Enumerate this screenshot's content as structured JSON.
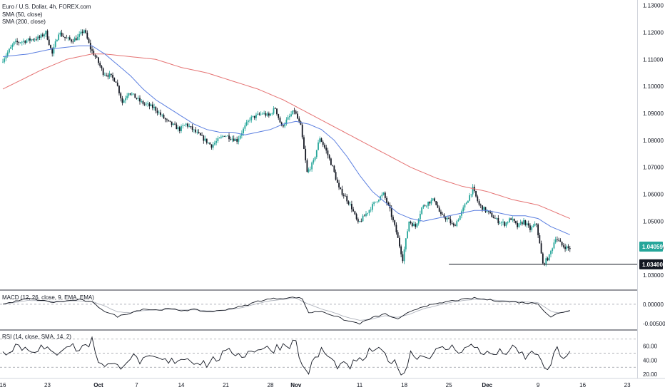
{
  "chart_data": [
    {
      "type": "candlestick",
      "title": "Euro / U.S. Dollar, 4h, FOREX.com",
      "indicators": [
        "SMA (50, close)",
        "SMA (200, close)"
      ],
      "ylim": [
        1.025,
        1.132
      ],
      "y_ticks": [
        "1.13000",
        "1.12000",
        "1.11000",
        "1.10000",
        "1.09000",
        "1.08000",
        "1.07000",
        "1.06000",
        "1.05000",
        "1.04000",
        "1.03000"
      ],
      "y_tick_values": [
        1.13,
        1.12,
        1.11,
        1.1,
        1.09,
        1.08,
        1.07,
        1.06,
        1.05,
        1.04,
        1.03
      ],
      "x_ticks": [
        "16",
        "23",
        "Oct",
        "7",
        "14",
        "21",
        "28",
        "Nov",
        "11",
        "18",
        "25",
        "Dec",
        "9",
        "16",
        "23"
      ],
      "x_tick_days": [
        0,
        7,
        15,
        21,
        28,
        35,
        42,
        46,
        56,
        63,
        70,
        76,
        84,
        91,
        98
      ],
      "x_range_days": [
        0,
        100
      ],
      "price_key_points": [
        [
          0,
          1.109
        ],
        [
          2,
          1.116
        ],
        [
          4,
          1.117
        ],
        [
          6,
          1.118
        ],
        [
          7,
          1.12
        ],
        [
          8,
          1.112
        ],
        [
          9,
          1.12
        ],
        [
          10,
          1.118
        ],
        [
          11,
          1.117
        ],
        [
          12,
          1.118
        ],
        [
          13,
          1.121
        ],
        [
          14,
          1.114
        ],
        [
          15,
          1.11
        ],
        [
          16,
          1.105
        ],
        [
          17,
          1.104
        ],
        [
          18,
          1.102
        ],
        [
          19,
          1.094
        ],
        [
          20,
          1.098
        ],
        [
          22,
          1.094
        ],
        [
          24,
          1.092
        ],
        [
          26,
          1.087
        ],
        [
          28,
          1.084
        ],
        [
          29,
          1.086
        ],
        [
          31,
          1.082
        ],
        [
          33,
          1.078
        ],
        [
          35,
          1.082
        ],
        [
          37,
          1.08
        ],
        [
          39,
          1.088
        ],
        [
          41,
          1.09
        ],
        [
          42,
          1.089
        ],
        [
          43,
          1.092
        ],
        [
          44,
          1.085
        ],
        [
          45,
          1.088
        ],
        [
          46,
          1.091
        ],
        [
          47,
          1.085
        ],
        [
          48,
          1.068
        ],
        [
          49,
          1.072
        ],
        [
          50,
          1.081
        ],
        [
          51,
          1.076
        ],
        [
          52,
          1.07
        ],
        [
          53,
          1.062
        ],
        [
          54,
          1.059
        ],
        [
          55,
          1.055
        ],
        [
          56,
          1.049
        ],
        [
          57,
          1.052
        ],
        [
          58,
          1.055
        ],
        [
          59,
          1.058
        ],
        [
          60,
          1.06
        ],
        [
          61,
          1.054
        ],
        [
          62,
          1.046
        ],
        [
          63,
          1.036
        ],
        [
          64,
          1.05
        ],
        [
          65,
          1.048
        ],
        [
          66,
          1.055
        ],
        [
          67,
          1.057
        ],
        [
          68,
          1.058
        ],
        [
          69,
          1.052
        ],
        [
          70,
          1.051
        ],
        [
          71,
          1.048
        ],
        [
          72,
          1.052
        ],
        [
          73,
          1.057
        ],
        [
          74,
          1.062
        ],
        [
          75,
          1.056
        ],
        [
          76,
          1.054
        ],
        [
          77,
          1.052
        ],
        [
          78,
          1.05
        ],
        [
          79,
          1.049
        ],
        [
          80,
          1.051
        ],
        [
          81,
          1.048
        ],
        [
          82,
          1.05
        ],
        [
          83,
          1.047
        ],
        [
          84,
          1.049
        ],
        [
          85,
          1.034
        ],
        [
          86,
          1.037
        ],
        [
          87,
          1.044
        ],
        [
          88,
          1.041
        ],
        [
          89,
          1.04
        ]
      ],
      "sma50_key_points": [
        [
          0,
          1.111
        ],
        [
          4,
          1.112
        ],
        [
          8,
          1.114
        ],
        [
          12,
          1.115
        ],
        [
          14,
          1.115
        ],
        [
          16,
          1.112
        ],
        [
          18,
          1.108
        ],
        [
          20,
          1.104
        ],
        [
          22,
          1.099
        ],
        [
          24,
          1.095
        ],
        [
          26,
          1.092
        ],
        [
          28,
          1.089
        ],
        [
          30,
          1.086
        ],
        [
          32,
          1.084
        ],
        [
          34,
          1.083
        ],
        [
          36,
          1.083
        ],
        [
          38,
          1.082
        ],
        [
          40,
          1.083
        ],
        [
          42,
          1.084
        ],
        [
          44,
          1.086
        ],
        [
          46,
          1.087
        ],
        [
          48,
          1.086
        ],
        [
          50,
          1.084
        ],
        [
          52,
          1.08
        ],
        [
          54,
          1.074
        ],
        [
          56,
          1.067
        ],
        [
          58,
          1.061
        ],
        [
          60,
          1.057
        ],
        [
          62,
          1.053
        ],
        [
          64,
          1.051
        ],
        [
          66,
          1.05
        ],
        [
          68,
          1.051
        ],
        [
          70,
          1.052
        ],
        [
          72,
          1.053
        ],
        [
          74,
          1.054
        ],
        [
          76,
          1.054
        ],
        [
          78,
          1.053
        ],
        [
          80,
          1.052
        ],
        [
          82,
          1.052
        ],
        [
          84,
          1.051
        ],
        [
          86,
          1.048
        ],
        [
          88,
          1.046
        ],
        [
          89,
          1.045
        ]
      ],
      "sma200_key_points": [
        [
          0,
          1.099
        ],
        [
          6,
          1.106
        ],
        [
          10,
          1.11
        ],
        [
          14,
          1.112
        ],
        [
          16,
          1.112
        ],
        [
          20,
          1.111
        ],
        [
          24,
          1.11
        ],
        [
          28,
          1.107
        ],
        [
          32,
          1.105
        ],
        [
          36,
          1.102
        ],
        [
          40,
          1.099
        ],
        [
          44,
          1.095
        ],
        [
          48,
          1.09
        ],
        [
          52,
          1.085
        ],
        [
          56,
          1.08
        ],
        [
          60,
          1.075
        ],
        [
          64,
          1.07
        ],
        [
          68,
          1.066
        ],
        [
          72,
          1.063
        ],
        [
          76,
          1.061
        ],
        [
          80,
          1.058
        ],
        [
          84,
          1.056
        ],
        [
          89,
          1.051
        ]
      ],
      "support_line": {
        "value": 1.034,
        "from_day": 70,
        "label": "1.03400"
      },
      "last_price": {
        "value": 1.04059,
        "label": "1.04059"
      },
      "colors": {
        "up": "#26a69a",
        "down": "#131722",
        "sma50": "#5b7fe0",
        "sma200": "#e57373",
        "last_price_bg": "#26a69a",
        "support_bg": "#131722"
      }
    },
    {
      "type": "line",
      "title": "MACD (12, 26, close, 9, EMA, EMA)",
      "y_ticks": [
        "0.00000",
        "-0.00500"
      ],
      "y_tick_values": [
        0.0,
        -0.005
      ],
      "ylim": [
        -0.0065,
        0.0035
      ],
      "macd_key_points": [
        [
          0,
          0.0
        ],
        [
          4,
          0.0015
        ],
        [
          8,
          0.0005
        ],
        [
          12,
          0.0012
        ],
        [
          14,
          0.0005
        ],
        [
          16,
          -0.0018
        ],
        [
          18,
          -0.0032
        ],
        [
          20,
          -0.0022
        ],
        [
          22,
          -0.0012
        ],
        [
          24,
          -0.0015
        ],
        [
          26,
          -0.0012
        ],
        [
          28,
          -0.0016
        ],
        [
          30,
          -0.0014
        ],
        [
          32,
          -0.002
        ],
        [
          34,
          -0.0017
        ],
        [
          36,
          -0.001
        ],
        [
          38,
          -0.0004
        ],
        [
          40,
          0.0008
        ],
        [
          42,
          0.0014
        ],
        [
          44,
          0.0016
        ],
        [
          46,
          0.0018
        ],
        [
          47,
          0.0014
        ],
        [
          48,
          -0.0022
        ],
        [
          50,
          -0.0018
        ],
        [
          52,
          -0.003
        ],
        [
          54,
          -0.0043
        ],
        [
          56,
          -0.005
        ],
        [
          58,
          -0.0035
        ],
        [
          60,
          -0.0025
        ],
        [
          62,
          -0.004
        ],
        [
          64,
          -0.0018
        ],
        [
          66,
          -0.0005
        ],
        [
          68,
          0.0
        ],
        [
          70,
          0.0008
        ],
        [
          72,
          0.0012
        ],
        [
          74,
          0.0016
        ],
        [
          76,
          0.0012
        ],
        [
          78,
          0.0008
        ],
        [
          80,
          0.0006
        ],
        [
          82,
          0.0004
        ],
        [
          84,
          0.0002
        ],
        [
          85,
          -0.0018
        ],
        [
          86,
          -0.0033
        ],
        [
          87,
          -0.0025
        ],
        [
          89,
          -0.0015
        ]
      ],
      "signal_key_points": [
        [
          0,
          0.0
        ],
        [
          4,
          0.001
        ],
        [
          8,
          0.0008
        ],
        [
          12,
          0.0009
        ],
        [
          14,
          0.0007
        ],
        [
          16,
          -0.0005
        ],
        [
          18,
          -0.002
        ],
        [
          20,
          -0.0022
        ],
        [
          22,
          -0.0016
        ],
        [
          24,
          -0.0015
        ],
        [
          26,
          -0.0013
        ],
        [
          28,
          -0.0015
        ],
        [
          30,
          -0.0014
        ],
        [
          32,
          -0.0017
        ],
        [
          34,
          -0.0017
        ],
        [
          36,
          -0.0013
        ],
        [
          38,
          -0.0007
        ],
        [
          40,
          0.0002
        ],
        [
          42,
          0.0009
        ],
        [
          44,
          0.0013
        ],
        [
          46,
          0.0016
        ],
        [
          48,
          0.0
        ],
        [
          50,
          -0.0012
        ],
        [
          52,
          -0.0022
        ],
        [
          54,
          -0.0034
        ],
        [
          56,
          -0.0042
        ],
        [
          58,
          -0.0038
        ],
        [
          60,
          -0.003
        ],
        [
          62,
          -0.0034
        ],
        [
          64,
          -0.0025
        ],
        [
          66,
          -0.0012
        ],
        [
          68,
          -0.0004
        ],
        [
          70,
          0.0004
        ],
        [
          72,
          0.0009
        ],
        [
          74,
          0.0013
        ],
        [
          76,
          0.0012
        ],
        [
          78,
          0.001
        ],
        [
          80,
          0.0008
        ],
        [
          82,
          0.0006
        ],
        [
          84,
          0.0004
        ],
        [
          86,
          -0.0018
        ],
        [
          87,
          -0.0022
        ],
        [
          89,
          -0.0019
        ]
      ],
      "colors": {
        "macd": "#131722",
        "signal": "#b0b4bd"
      }
    },
    {
      "type": "line",
      "title": "RSI (14, close, SMA, 14, 2)",
      "y_ticks": [
        "60.00",
        "40.00",
        "20.00"
      ],
      "y_tick_values": [
        60,
        40,
        20
      ],
      "ylim": [
        15,
        82
      ],
      "bands": [
        70,
        50,
        30
      ],
      "rsi_key_points": [
        [
          0,
          50
        ],
        [
          2,
          62
        ],
        [
          4,
          55
        ],
        [
          6,
          58
        ],
        [
          8,
          48
        ],
        [
          10,
          63
        ],
        [
          12,
          55
        ],
        [
          14,
          68
        ],
        [
          15,
          40
        ],
        [
          16,
          35
        ],
        [
          18,
          30
        ],
        [
          20,
          45
        ],
        [
          22,
          38
        ],
        [
          24,
          42
        ],
        [
          26,
          36
        ],
        [
          28,
          44
        ],
        [
          30,
          40
        ],
        [
          32,
          35
        ],
        [
          34,
          45
        ],
        [
          36,
          52
        ],
        [
          38,
          48
        ],
        [
          40,
          58
        ],
        [
          42,
          55
        ],
        [
          44,
          62
        ],
        [
          46,
          65
        ],
        [
          47,
          30
        ],
        [
          48,
          25
        ],
        [
          50,
          55
        ],
        [
          52,
          35
        ],
        [
          54,
          30
        ],
        [
          56,
          38
        ],
        [
          58,
          55
        ],
        [
          60,
          48
        ],
        [
          62,
          30
        ],
        [
          63,
          22
        ],
        [
          64,
          50
        ],
        [
          66,
          45
        ],
        [
          68,
          52
        ],
        [
          70,
          58
        ],
        [
          72,
          55
        ],
        [
          74,
          60
        ],
        [
          76,
          48
        ],
        [
          78,
          50
        ],
        [
          80,
          55
        ],
        [
          82,
          45
        ],
        [
          84,
          52
        ],
        [
          85,
          22
        ],
        [
          86,
          35
        ],
        [
          87,
          55
        ],
        [
          88,
          45
        ],
        [
          89,
          48
        ]
      ],
      "colors": {
        "rsi": "#131722",
        "bands": "#9598a1"
      }
    }
  ]
}
